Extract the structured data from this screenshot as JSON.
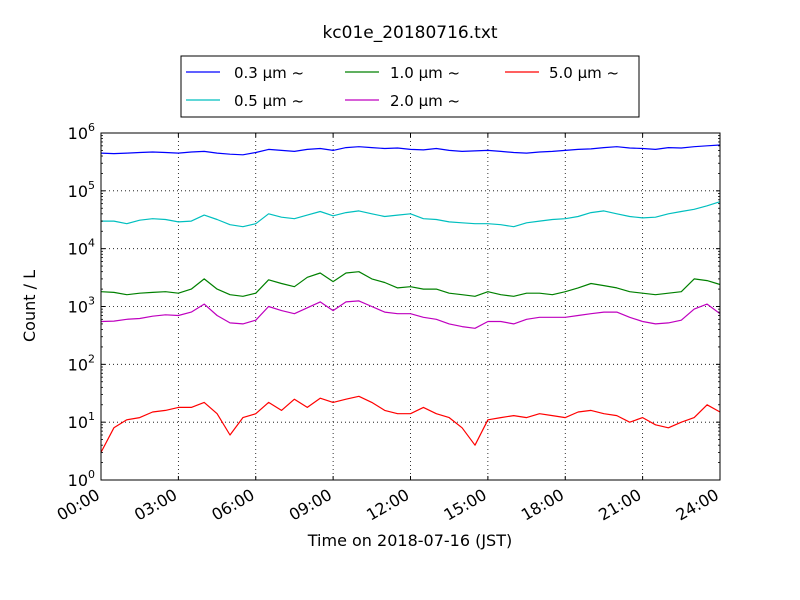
{
  "chart_data": {
    "type": "line",
    "title": "kc01e_20180716.txt",
    "xlabel": "Time on 2018-07-16 (JST)",
    "ylabel": "Count / L",
    "xlim": [
      "00:00",
      "24:00"
    ],
    "ylim": [
      1,
      1000000
    ],
    "yscale": "log",
    "grid": true,
    "legend_position": "top-center",
    "x_ticks": [
      "00:00",
      "03:00",
      "06:00",
      "09:00",
      "12:00",
      "15:00",
      "18:00",
      "21:00",
      "24:00"
    ],
    "x_tick_hours": [
      0,
      3,
      6,
      9,
      12,
      15,
      18,
      21,
      24
    ],
    "y_ticks": [
      {
        "base": "10",
        "exp": "0",
        "value": 1
      },
      {
        "base": "10",
        "exp": "1",
        "value": 10
      },
      {
        "base": "10",
        "exp": "2",
        "value": 100
      },
      {
        "base": "10",
        "exp": "3",
        "value": 1000
      },
      {
        "base": "10",
        "exp": "4",
        "value": 10000
      },
      {
        "base": "10",
        "exp": "5",
        "value": 100000
      },
      {
        "base": "10",
        "exp": "6",
        "value": 1000000
      }
    ],
    "x_hours": [
      0,
      0.5,
      1,
      1.5,
      2,
      2.5,
      3,
      3.5,
      4,
      4.5,
      5,
      5.5,
      6,
      6.5,
      7,
      7.5,
      8,
      8.5,
      9,
      9.5,
      10,
      10.5,
      11,
      11.5,
      12,
      12.5,
      13,
      13.5,
      14,
      14.5,
      15,
      15.5,
      16,
      16.5,
      17,
      17.5,
      18,
      18.5,
      19,
      19.5,
      20,
      20.5,
      21,
      21.5,
      22,
      22.5,
      23,
      23.5,
      24
    ],
    "series": [
      {
        "name": "0.3 μm ~",
        "color": "#0000ff",
        "values": [
          450000,
          440000,
          450000,
          460000,
          470000,
          460000,
          450000,
          470000,
          480000,
          450000,
          430000,
          420000,
          460000,
          520000,
          500000,
          480000,
          520000,
          540000,
          500000,
          560000,
          580000,
          560000,
          540000,
          550000,
          520000,
          510000,
          540000,
          500000,
          480000,
          490000,
          500000,
          480000,
          460000,
          450000,
          470000,
          480000,
          500000,
          520000,
          530000,
          560000,
          580000,
          550000,
          540000,
          520000,
          560000,
          550000,
          580000,
          600000,
          620000
        ]
      },
      {
        "name": "0.5 μm ~",
        "color": "#00bfbf",
        "values": [
          30000,
          30000,
          27000,
          31000,
          33000,
          32000,
          29000,
          30000,
          38000,
          32000,
          26000,
          24000,
          27000,
          40000,
          35000,
          33000,
          38000,
          44000,
          37000,
          42000,
          45000,
          40000,
          36000,
          38000,
          40000,
          33000,
          32000,
          29000,
          28000,
          27000,
          27000,
          26000,
          24000,
          28000,
          30000,
          32000,
          33000,
          36000,
          42000,
          45000,
          40000,
          36000,
          34000,
          35000,
          40000,
          44000,
          48000,
          55000,
          65000
        ]
      },
      {
        "name": "1.0 μm ~",
        "color": "#008000",
        "values": [
          1800,
          1750,
          1600,
          1700,
          1750,
          1800,
          1700,
          2000,
          3000,
          2000,
          1600,
          1500,
          1700,
          2900,
          2500,
          2200,
          3200,
          3800,
          2700,
          3800,
          4000,
          3000,
          2600,
          2100,
          2200,
          2000,
          2000,
          1700,
          1600,
          1500,
          1800,
          1600,
          1500,
          1700,
          1700,
          1600,
          1800,
          2100,
          2500,
          2300,
          2100,
          1800,
          1700,
          1600,
          1700,
          1800,
          3000,
          2800,
          2400
        ]
      },
      {
        "name": "2.0 μm ~",
        "color": "#bf00bf",
        "values": [
          550,
          560,
          600,
          620,
          680,
          720,
          700,
          800,
          1100,
          700,
          520,
          500,
          580,
          1000,
          850,
          750,
          950,
          1200,
          850,
          1200,
          1250,
          1000,
          800,
          750,
          750,
          650,
          600,
          500,
          450,
          420,
          550,
          550,
          500,
          600,
          650,
          650,
          650,
          700,
          750,
          800,
          800,
          650,
          550,
          500,
          520,
          580,
          900,
          1100,
          750
        ]
      },
      {
        "name": "5.0 μm ~",
        "color": "#ff0000",
        "values": [
          3,
          8,
          11,
          12,
          15,
          16,
          18,
          18,
          22,
          14,
          6,
          12,
          14,
          22,
          16,
          25,
          18,
          26,
          22,
          25,
          28,
          22,
          16,
          14,
          14,
          18,
          14,
          12,
          8,
          4,
          11,
          12,
          13,
          12,
          14,
          13,
          12,
          15,
          16,
          14,
          13,
          10,
          12,
          9,
          8,
          10,
          12,
          20,
          15
        ]
      }
    ]
  }
}
